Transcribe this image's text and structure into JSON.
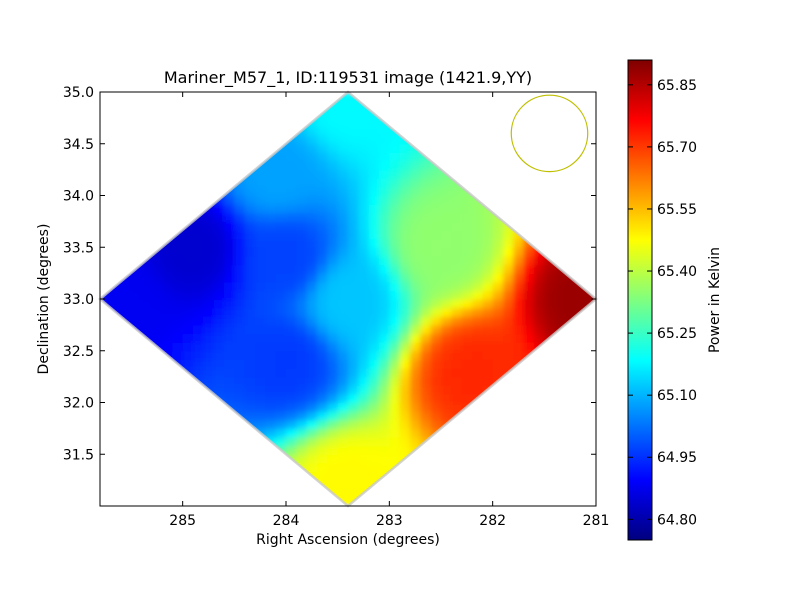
{
  "chart_data": {
    "type": "heatmap",
    "title": "Mariner_M57_1, ID:119531 image (1421.9,YY)",
    "xlabel": "Right Ascension (degrees)",
    "ylabel": "Declination (degrees)",
    "xlim": [
      285.8,
      281.0
    ],
    "ylim": [
      31.0,
      35.0
    ],
    "x_inverted": true,
    "x_ticks": [
      "285",
      "284",
      "283",
      "282",
      "281"
    ],
    "x_tick_values": [
      285,
      284,
      283,
      282,
      281
    ],
    "y_ticks": [
      "31.5",
      "32.0",
      "32.5",
      "33.0",
      "33.5",
      "34.0",
      "34.5",
      "35.0"
    ],
    "y_tick_values": [
      31.5,
      32.0,
      32.5,
      33.0,
      33.5,
      34.0,
      34.5,
      35.0
    ],
    "map_footprint": [
      [
        285.8,
        33.0
      ],
      [
        283.4,
        35.0
      ],
      [
        281.0,
        33.0
      ],
      [
        283.4,
        31.0
      ]
    ],
    "field_samples": [
      {
        "ra": 285.6,
        "dec": 33.0,
        "value": 64.88
      },
      {
        "ra": 284.9,
        "dec": 33.5,
        "value": 64.84
      },
      {
        "ra": 284.1,
        "dec": 34.2,
        "value": 65.08
      },
      {
        "ra": 283.4,
        "dec": 34.9,
        "value": 65.18
      },
      {
        "ra": 284.0,
        "dec": 33.4,
        "value": 64.97
      },
      {
        "ra": 284.0,
        "dec": 32.4,
        "value": 64.96
      },
      {
        "ra": 283.4,
        "dec": 33.0,
        "value": 65.12
      },
      {
        "ra": 283.4,
        "dec": 31.2,
        "value": 65.48
      },
      {
        "ra": 282.5,
        "dec": 33.5,
        "value": 65.35
      },
      {
        "ra": 282.2,
        "dec": 32.3,
        "value": 65.72
      },
      {
        "ra": 281.1,
        "dec": 33.0,
        "value": 65.88
      }
    ],
    "beam_marker": {
      "ra": 281.45,
      "dec": 34.6,
      "radius_deg": 0.37,
      "color": "#bfbf00"
    },
    "colorbar": {
      "label": "Power in Kelvin",
      "vmin": 64.75,
      "vmax": 65.91,
      "ticks": [
        "64.80",
        "64.95",
        "65.10",
        "65.25",
        "65.40",
        "65.55",
        "65.70",
        "65.85"
      ],
      "tick_values": [
        64.8,
        64.95,
        65.1,
        65.25,
        65.4,
        65.55,
        65.7,
        65.85
      ],
      "colormap": [
        "#00007f",
        "#0000ff",
        "#007fff",
        "#00ffff",
        "#7fff7f",
        "#ffff00",
        "#ff7f00",
        "#ff0000",
        "#7f0000"
      ]
    },
    "grid": false
  }
}
